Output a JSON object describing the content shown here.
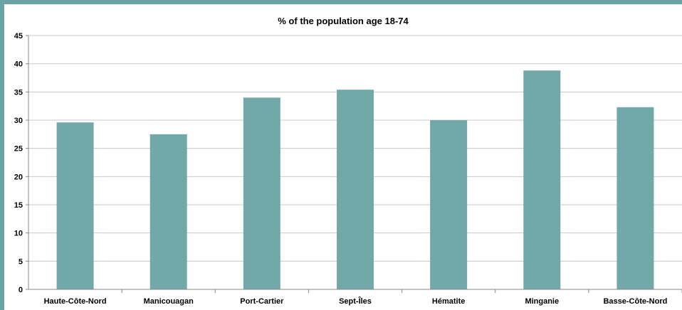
{
  "chart_data": {
    "type": "bar",
    "title": "% of the population age 18-74",
    "xlabel": "",
    "ylabel": "",
    "categories": [
      "Haute-Côte-Nord",
      "Manicouagan",
      "Port-Cartier",
      "Sept-Îles",
      "Hématite",
      "Minganie",
      "Basse-Côte-Nord"
    ],
    "values": [
      29.6,
      27.5,
      34.0,
      35.4,
      30.0,
      38.8,
      32.3
    ],
    "ylim": [
      0,
      45
    ],
    "yticks": [
      0,
      5,
      10,
      15,
      20,
      25,
      30,
      35,
      40,
      45
    ],
    "grid": true,
    "legend": "none",
    "bar_color": "#72a9a8",
    "gridline_color": "#c8c8c8",
    "background_color": "#ffffff",
    "border_color": "#6aa3a4"
  }
}
